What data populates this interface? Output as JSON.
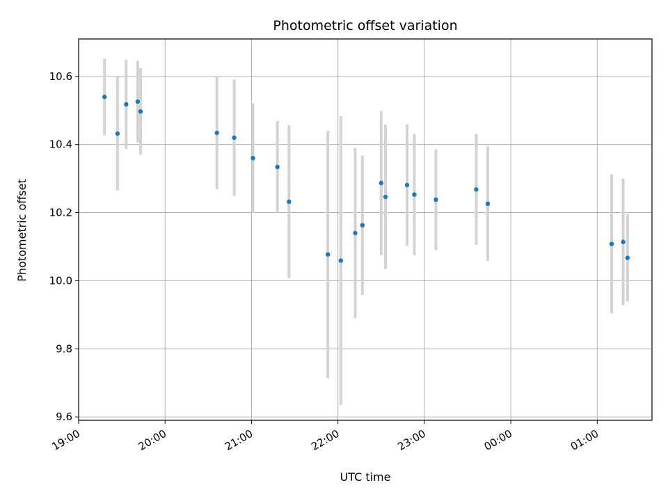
{
  "chart_data": {
    "type": "scatter",
    "title": "Photometric offset variation",
    "xlabel": "UTC time",
    "ylabel": "Photometric offset",
    "grid": true,
    "x_is_time": true,
    "xlim": [
      "19:00",
      "25:38"
    ],
    "ylim": [
      9.59,
      10.71
    ],
    "xticks": [
      "19:00",
      "20:00",
      "21:00",
      "22:00",
      "23:00",
      "00:00",
      "01:00"
    ],
    "yticks": [
      "9.6",
      "9.8",
      "10.0",
      "10.2",
      "10.4",
      "10.6"
    ],
    "points": [
      {
        "time": "19:18",
        "y": 10.54,
        "err": 0.113
      },
      {
        "time": "19:27",
        "y": 10.432,
        "err": 0.167
      },
      {
        "time": "19:33",
        "y": 10.518,
        "err": 0.131
      },
      {
        "time": "19:41",
        "y": 10.526,
        "err": 0.12
      },
      {
        "time": "19:43",
        "y": 10.497,
        "err": 0.127
      },
      {
        "time": "20:36",
        "y": 10.434,
        "err": 0.166
      },
      {
        "time": "20:48",
        "y": 10.42,
        "err": 0.171
      },
      {
        "time": "21:01",
        "y": 10.36,
        "err": 0.161
      },
      {
        "time": "21:18",
        "y": 10.334,
        "err": 0.135
      },
      {
        "time": "21:26",
        "y": 10.232,
        "err": 0.225
      },
      {
        "time": "21:53",
        "y": 10.077,
        "err": 0.363
      },
      {
        "time": "22:02",
        "y": 10.059,
        "err": 0.424
      },
      {
        "time": "22:12",
        "y": 10.14,
        "err": 0.25
      },
      {
        "time": "22:17",
        "y": 10.163,
        "err": 0.205
      },
      {
        "time": "22:30",
        "y": 10.287,
        "err": 0.211
      },
      {
        "time": "22:33",
        "y": 10.246,
        "err": 0.212
      },
      {
        "time": "22:48",
        "y": 10.281,
        "err": 0.178
      },
      {
        "time": "22:53",
        "y": 10.253,
        "err": 0.178
      },
      {
        "time": "23:08",
        "y": 10.238,
        "err": 0.148
      },
      {
        "time": "23:36",
        "y": 10.268,
        "err": 0.163
      },
      {
        "time": "23:44",
        "y": 10.226,
        "err": 0.168
      },
      {
        "time": "25:10",
        "y": 10.108,
        "err": 0.204
      },
      {
        "time": "25:18",
        "y": 10.114,
        "err": 0.186
      },
      {
        "time": "25:21",
        "y": 10.067,
        "err": 0.128
      }
    ],
    "colors": {
      "marker": "#1f77b4",
      "errorbar": "#d3d3d3",
      "grid": "#b0b0b0"
    }
  }
}
